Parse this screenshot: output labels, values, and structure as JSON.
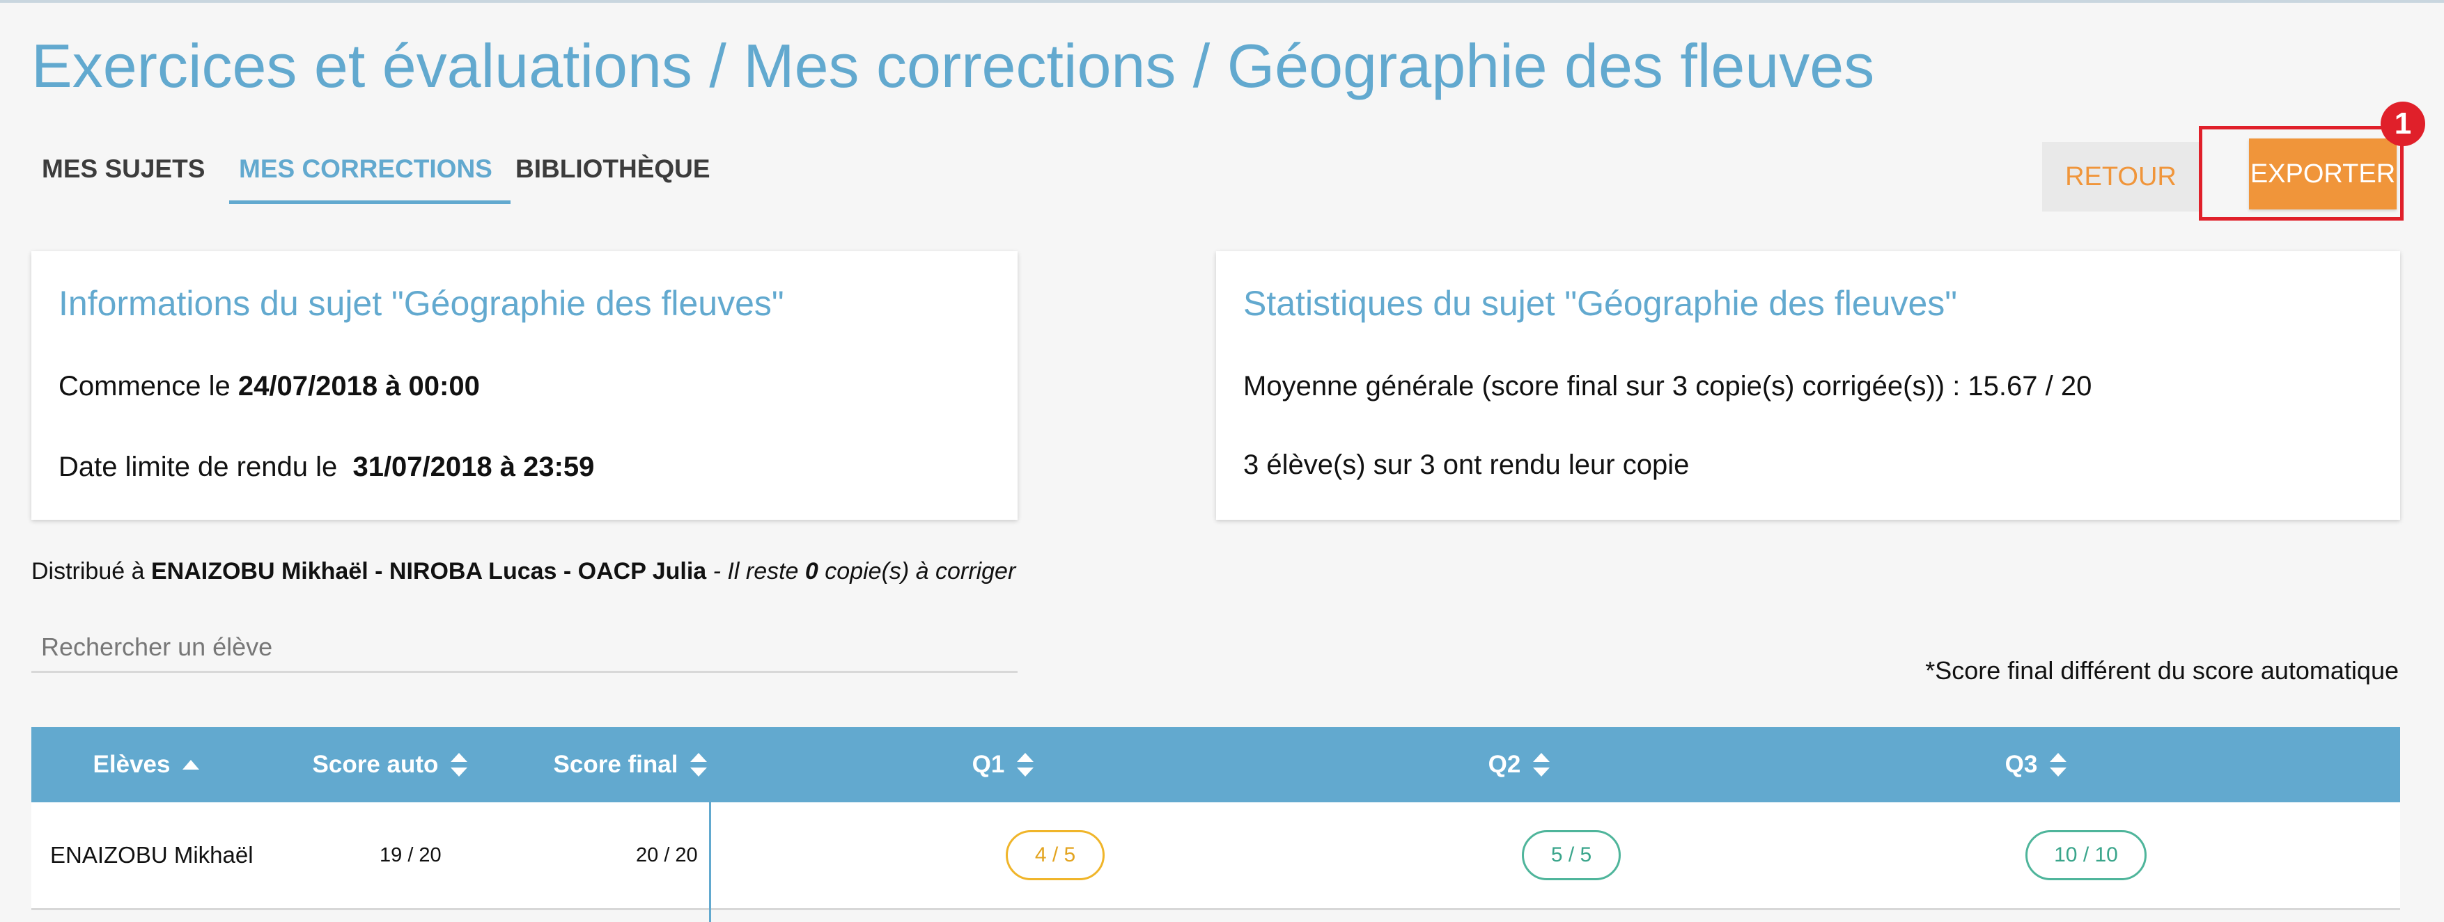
{
  "page": {
    "title": "Exercices et évaluations / Mes corrections / Géographie des fleuves"
  },
  "tabs": [
    {
      "label": "MES SUJETS"
    },
    {
      "label": "MES CORRECTIONS",
      "active": true
    },
    {
      "label": "BIBLIOTHÈQUE"
    }
  ],
  "actions": {
    "retour_label": "RETOUR",
    "exporter_label": "EXPORTER",
    "annotation_number": "1"
  },
  "info_card": {
    "title": "Informations du sujet \"Géographie des fleuves\"",
    "start_prefix": "Commence le ",
    "start_value": "24/07/2018 à 00:00",
    "deadline_prefix": "Date limite de rendu le ",
    "deadline_value": "31/07/2018 à 23:59"
  },
  "stats_card": {
    "title": "Statistiques du sujet \"Géographie des fleuves\"",
    "average_text": "Moyenne générale (score final sur 3 copie(s) corrigée(s)) : 15.67 / 20",
    "submitted_text": "3 élève(s) sur 3 ont rendu leur copie"
  },
  "distribution": {
    "prefix": "Distribué à ",
    "students": "ENAIZOBU Mikhaël - NIROBA Lucas - OACP Julia",
    "remaining_prefix": " - Il reste ",
    "remaining_count": "0",
    "remaining_suffix": " copie(s) à corriger"
  },
  "search": {
    "placeholder": "Rechercher un élève"
  },
  "score_note": "*Score final différent du score automatique",
  "table": {
    "columns": [
      "Elèves",
      "Score auto",
      "Score final",
      "Q1",
      "Q2",
      "Q3"
    ],
    "rows": [
      {
        "student": "ENAIZOBU Mikhaël",
        "score_auto": "19 / 20",
        "score_final": "20 / 20",
        "q1": "4 / 5",
        "q2": "5 / 5",
        "q3": "10 / 10"
      }
    ]
  },
  "colors": {
    "accent": "#62a9cf",
    "orange": "#f0953a",
    "highlight_red": "#e0202a",
    "pill_partial": "#f0b52a",
    "pill_full": "#4fb59b"
  },
  "icons": {
    "sort_asc": "sort-ascending-icon",
    "sort_both": "sort-icon"
  }
}
